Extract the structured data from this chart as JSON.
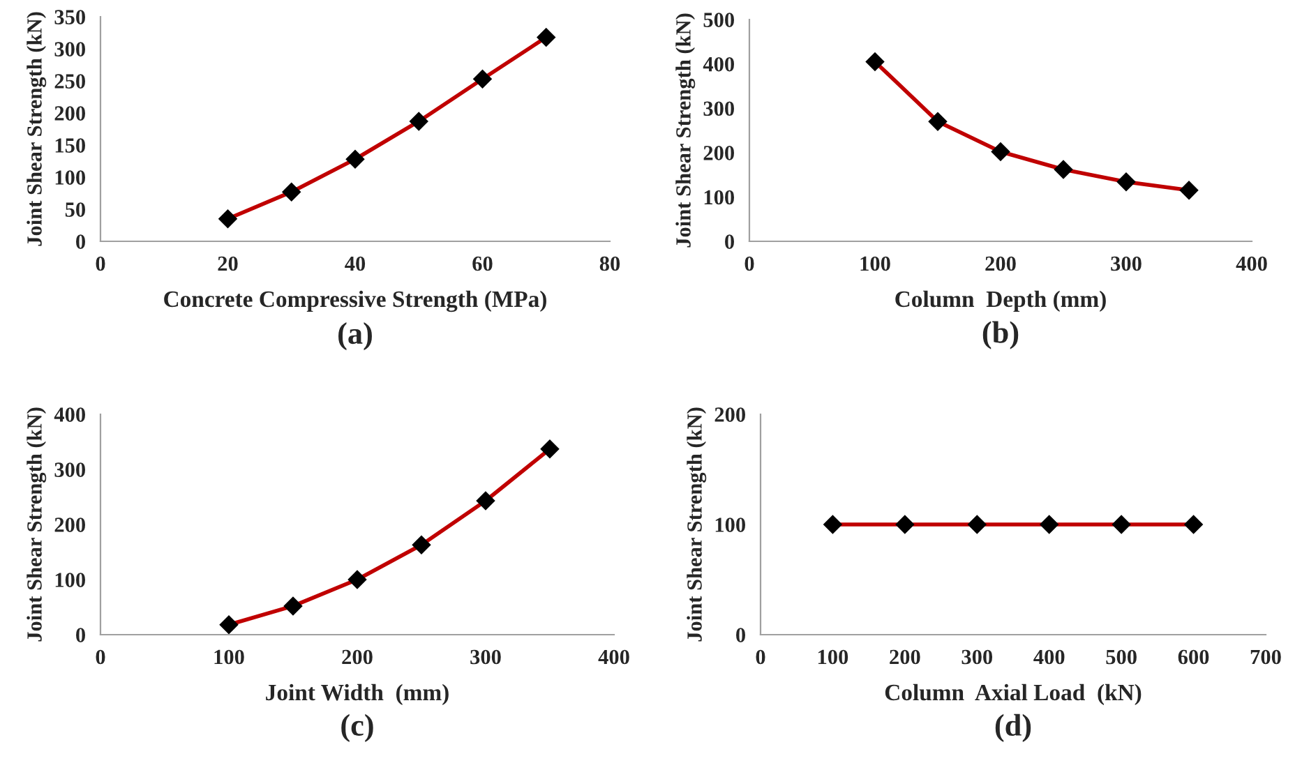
{
  "chart_data": [
    {
      "type": "line",
      "xlabel": "Concrete Compressive Strength (MPa)",
      "ylabel": "Joint Shear Strength (kN)",
      "annotations": [
        "(a)"
      ],
      "x": [
        20,
        30,
        40,
        50,
        60,
        70
      ],
      "series": [
        {
          "color": "#c00000",
          "values": [
            35,
            77,
            128,
            187,
            253,
            318
          ]
        }
      ],
      "xlim": [
        0,
        80
      ],
      "xticks": [
        0,
        20,
        40,
        60,
        80
      ],
      "ylim": [
        0,
        350
      ],
      "yticks": [
        0,
        50,
        100,
        150,
        200,
        250,
        300,
        350
      ],
      "marker": "diamond",
      "line_style": "solid",
      "grid": false,
      "legend": false
    },
    {
      "type": "line",
      "xlabel": "Column  Depth (mm)",
      "ylabel": "Joint Shear Strength (kN)",
      "annotations": [
        "(b)"
      ],
      "x": [
        100,
        150,
        200,
        250,
        300,
        350
      ],
      "series": [
        {
          "color": "#c00000",
          "values": [
            405,
            270,
            202,
            162,
            134,
            115
          ]
        }
      ],
      "xlim": [
        0,
        400
      ],
      "xticks": [
        0,
        100,
        200,
        300,
        400
      ],
      "ylim": [
        0,
        500
      ],
      "yticks": [
        0,
        100,
        200,
        300,
        400,
        500
      ],
      "marker": "diamond",
      "line_style": "solid",
      "grid": false,
      "legend": false
    },
    {
      "type": "line",
      "xlabel": "Joint Width  (mm)",
      "ylabel": "Joint Shear Strength (kN)",
      "annotations": [
        "(c)"
      ],
      "x": [
        100,
        150,
        200,
        250,
        300,
        350
      ],
      "series": [
        {
          "color": "#c00000",
          "values": [
            18,
            52,
            100,
            163,
            243,
            337
          ]
        }
      ],
      "xlim": [
        0,
        400
      ],
      "xticks": [
        0,
        100,
        200,
        300,
        400
      ],
      "ylim": [
        0,
        400
      ],
      "yticks": [
        0,
        100,
        200,
        300,
        400
      ],
      "marker": "diamond",
      "line_style": "solid",
      "grid": false,
      "legend": false
    },
    {
      "type": "line",
      "xlabel": "Column  Axial Load  (kN)",
      "ylabel": "Joint Shear Strength (kN)",
      "annotations": [
        "(d)"
      ],
      "x": [
        100,
        200,
        300,
        400,
        500,
        600
      ],
      "series": [
        {
          "color": "#c00000",
          "values": [
            100,
            100,
            100,
            100,
            100,
            100
          ]
        }
      ],
      "xlim": [
        0,
        700
      ],
      "xticks": [
        0,
        100,
        200,
        300,
        400,
        500,
        600,
        700
      ],
      "ylim": [
        0,
        200
      ],
      "yticks": [
        0,
        100,
        200
      ],
      "marker": "diamond",
      "line_style": "solid",
      "grid": false,
      "legend": false
    }
  ]
}
